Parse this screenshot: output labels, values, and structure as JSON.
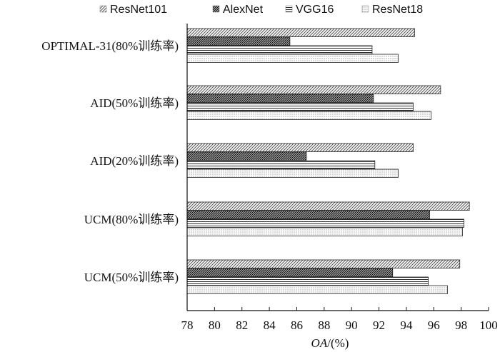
{
  "chart_data": {
    "type": "bar",
    "orientation": "horizontal",
    "categories": [
      "OPTIMAL-31(80%训练率)",
      "AID(50%训练率)",
      "AID(20%训练率)",
      "UCM(80%训练率)",
      "UCM(50%训练率)"
    ],
    "series": [
      {
        "name": "ResNet101",
        "values": [
          94.6,
          96.5,
          94.5,
          98.6,
          97.9
        ]
      },
      {
        "name": "AlexNet",
        "values": [
          85.5,
          91.6,
          86.7,
          95.7,
          93.0
        ]
      },
      {
        "name": "VGG16",
        "values": [
          91.5,
          94.5,
          91.7,
          98.2,
          95.6
        ]
      },
      {
        "name": "ResNet18",
        "values": [
          93.4,
          95.8,
          93.4,
          98.1,
          97.0
        ]
      }
    ],
    "xlabel_italic": "OA",
    "xlabel_suffix": "/(%)",
    "xlim": [
      78,
      100
    ],
    "xticks": [
      78,
      80,
      82,
      84,
      86,
      88,
      90,
      92,
      94,
      96,
      98,
      100
    ],
    "legend_position": "top",
    "grid": false
  }
}
